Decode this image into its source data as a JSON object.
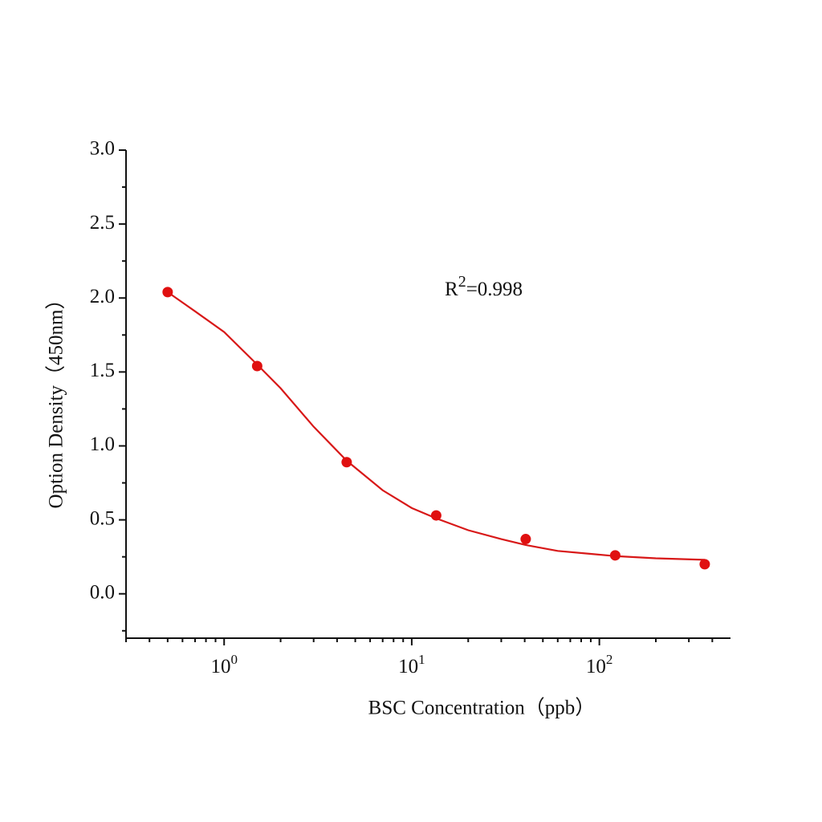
{
  "chart_data": {
    "type": "scatter",
    "x_label": "BSC  Concentration（ppb）",
    "y_label": "Option Density（450nm）",
    "annotation": {
      "base": "R",
      "sup": "2",
      "rest": "=0.998"
    },
    "x_log": true,
    "xlim": [
      0.3,
      500
    ],
    "ylim": [
      -0.3,
      3.0
    ],
    "xticks": [
      {
        "value": 1,
        "label": "10",
        "exponent": "0"
      },
      {
        "value": 10,
        "label": "10",
        "exponent": "1"
      },
      {
        "value": 100,
        "label": "10",
        "exponent": "2"
      }
    ],
    "x_minor_ticks": [
      0.3,
      0.4,
      0.5,
      0.6,
      0.7,
      0.8,
      0.9,
      2,
      3,
      4,
      5,
      6,
      7,
      8,
      9,
      20,
      30,
      40,
      50,
      60,
      70,
      80,
      90,
      200,
      300,
      400
    ],
    "yticks": [
      {
        "value": 0,
        "label": "0.0"
      },
      0.5,
      {
        "value": 1,
        "label": "1.0"
      },
      1.5,
      {
        "value": 2,
        "label": "2.0"
      },
      2.5,
      {
        "value": 3,
        "label": "3.0"
      }
    ],
    "y_minor_ticks": [
      -0.25,
      0.25,
      0.75,
      1.25,
      1.75,
      2.25,
      2.75
    ],
    "series": [
      {
        "kind": "points",
        "color": "#e01010",
        "x": [
          0.5,
          1.5,
          4.5,
          13.5,
          40.5,
          121.5,
          364.5
        ],
        "values": [
          2.04,
          1.54,
          0.89,
          0.53,
          0.37,
          0.26,
          0.2
        ]
      },
      {
        "kind": "line",
        "color": "#d81818",
        "x": [
          0.5,
          0.7,
          1,
          1.5,
          2,
          3,
          4.5,
          7,
          10,
          13.5,
          20,
          30,
          40.5,
          60,
          90,
          121.5,
          200,
          364.5
        ],
        "values": [
          2.04,
          1.91,
          1.77,
          1.55,
          1.39,
          1.13,
          0.9,
          0.7,
          0.58,
          0.51,
          0.43,
          0.37,
          0.33,
          0.29,
          0.27,
          0.255,
          0.24,
          0.23
        ]
      }
    ]
  }
}
